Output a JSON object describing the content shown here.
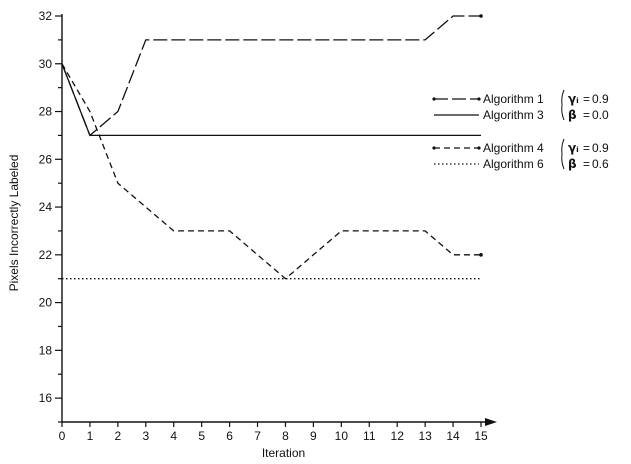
{
  "chart_data": {
    "type": "line",
    "xlabel": "Iteration",
    "ylabel": "Pixels Incorrectly Labeled",
    "xlim": [
      0,
      15
    ],
    "ylim": [
      15,
      32
    ],
    "x_ticks": [
      0,
      1,
      2,
      3,
      4,
      5,
      6,
      7,
      8,
      9,
      10,
      11,
      12,
      13,
      14,
      15
    ],
    "y_ticks": [
      16,
      18,
      20,
      22,
      24,
      26,
      28,
      30,
      32
    ],
    "grid": false,
    "legend_position": "right",
    "series": [
      {
        "name": "Algorithm 1",
        "line_style": "long-dash",
        "x": [
          0,
          1,
          2,
          3,
          4,
          5,
          6,
          7,
          8,
          9,
          10,
          11,
          12,
          13,
          14,
          15
        ],
        "y": [
          30,
          27,
          28,
          31,
          31,
          31,
          31,
          31,
          31,
          31,
          31,
          31,
          31,
          31,
          32,
          32
        ]
      },
      {
        "name": "Algorithm 3",
        "line_style": "solid",
        "x": [
          0,
          1,
          2,
          3,
          4,
          5,
          6,
          7,
          8,
          9,
          10,
          11,
          12,
          13,
          14,
          15
        ],
        "y": [
          30,
          27,
          27,
          27,
          27,
          27,
          27,
          27,
          27,
          27,
          27,
          27,
          27,
          27,
          27,
          27
        ]
      },
      {
        "name": "Algorithm 4",
        "line_style": "short-dash",
        "x": [
          0,
          1,
          2,
          3,
          4,
          5,
          6,
          7,
          8,
          9,
          10,
          11,
          12,
          13,
          14,
          15
        ],
        "y": [
          30,
          28,
          25,
          24,
          23,
          23,
          23,
          22,
          21,
          22,
          23,
          23,
          23,
          23,
          22,
          22
        ]
      },
      {
        "name": "Algorithm 6",
        "line_style": "dotted",
        "x": [
          0,
          1,
          2,
          3,
          4,
          5,
          6,
          7,
          8,
          9,
          10,
          11,
          12,
          13,
          14,
          15
        ],
        "y": [
          21,
          21,
          21,
          21,
          21,
          21,
          21,
          21,
          21,
          21,
          21,
          21,
          21,
          21,
          21,
          21
        ]
      }
    ],
    "legend_groups": [
      {
        "series": [
          0,
          1
        ],
        "params": [
          {
            "symbol": "γᵢ",
            "eq": "=",
            "value": "0.9"
          },
          {
            "symbol": "β",
            "eq": "=",
            "value": "0.0"
          }
        ]
      },
      {
        "series": [
          2,
          3
        ],
        "params": [
          {
            "symbol": "γᵢ",
            "eq": "=",
            "value": "0.9"
          },
          {
            "symbol": "β",
            "eq": "=",
            "value": "0.6"
          }
        ]
      }
    ]
  }
}
